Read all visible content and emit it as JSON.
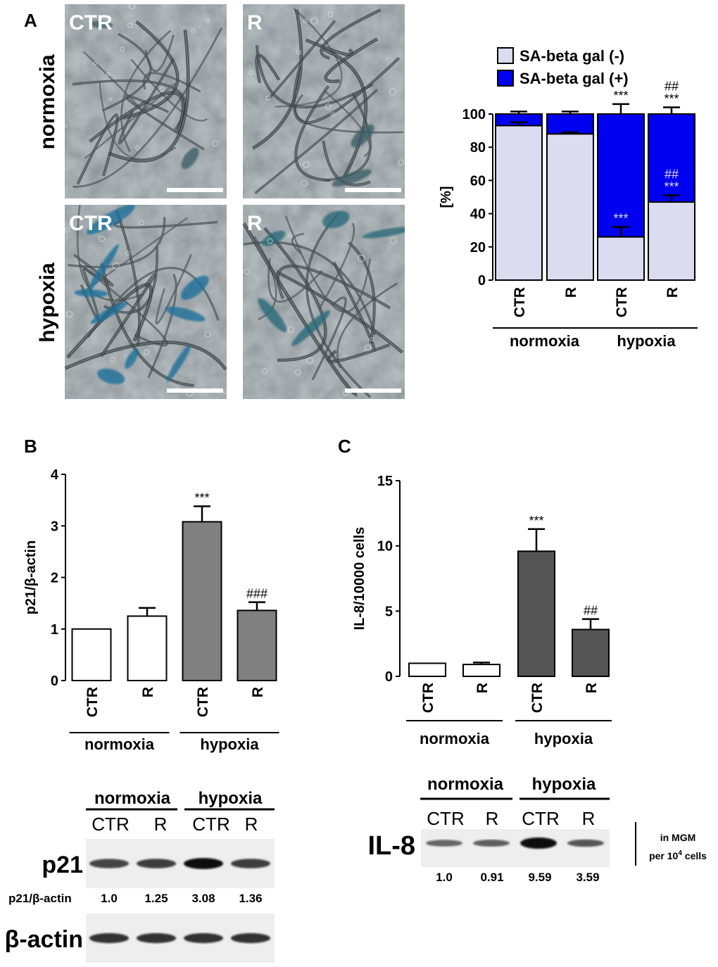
{
  "panels": {
    "a": "A",
    "b": "B",
    "c": "C"
  },
  "micrographs": {
    "row_labels": [
      "normoxia",
      "hypoxia"
    ],
    "images": [
      {
        "label": "CTR",
        "stain": "low"
      },
      {
        "label": "R",
        "stain": "low"
      },
      {
        "label": "CTR",
        "stain": "high"
      },
      {
        "label": "R",
        "stain": "medium"
      }
    ]
  },
  "chart_data": [
    {
      "type": "bar",
      "stacked": true,
      "panel": "A",
      "categories": [
        "CTR",
        "R",
        "CTR",
        "R"
      ],
      "groups": [
        {
          "name": "normoxia",
          "span": [
            0,
            1
          ]
        },
        {
          "name": "hypoxia",
          "span": [
            2,
            3
          ]
        }
      ],
      "series": [
        {
          "name": "SA-beta gal (-)",
          "values": [
            93,
            88,
            26,
            47
          ],
          "errors": [
            2,
            1,
            6,
            4
          ],
          "color": "#dcdcf0"
        },
        {
          "name": "SA-beta gal (+)",
          "values": [
            7,
            12,
            74,
            53
          ],
          "errors": [
            1.5,
            1.5,
            6,
            4
          ],
          "color": "#0000f0"
        }
      ],
      "annotations": {
        "bottom": [
          "",
          "",
          "***",
          "##\n***"
        ],
        "top": [
          "",
          "",
          "***",
          "##\n***"
        ]
      },
      "ylabel": "[%]",
      "ylim": [
        0,
        100
      ],
      "yticks": [
        0,
        20,
        40,
        60,
        80,
        100
      ],
      "legend_position": "top"
    },
    {
      "type": "bar",
      "panel": "B",
      "categories": [
        "CTR",
        "R",
        "CTR",
        "R"
      ],
      "groups": [
        {
          "name": "normoxia",
          "span": [
            0,
            1
          ]
        },
        {
          "name": "hypoxia",
          "span": [
            2,
            3
          ]
        }
      ],
      "values": [
        1.0,
        1.25,
        3.08,
        1.36
      ],
      "errors": [
        0,
        0.16,
        0.3,
        0.16
      ],
      "colors": [
        "#ffffff",
        "#ffffff",
        "#808080",
        "#808080"
      ],
      "annotations": [
        "",
        "",
        "***",
        "###"
      ],
      "ylabel": "p21/β-actin",
      "ylim": [
        0,
        4
      ],
      "yticks": [
        0,
        1,
        2,
        3,
        4
      ]
    },
    {
      "type": "bar",
      "panel": "C",
      "categories": [
        "CTR",
        "R",
        "CTR",
        "R"
      ],
      "groups": [
        {
          "name": "normoxia",
          "span": [
            0,
            1
          ]
        },
        {
          "name": "hypoxia",
          "span": [
            2,
            3
          ]
        }
      ],
      "values": [
        1.0,
        0.91,
        9.59,
        3.59
      ],
      "errors": [
        0,
        0.15,
        1.7,
        0.8
      ],
      "colors": [
        "#ffffff",
        "#ffffff",
        "#555555",
        "#555555"
      ],
      "annotations": [
        "",
        "",
        "***",
        "##"
      ],
      "ylabel": "IL-8/10000 cells",
      "ylim": [
        0,
        15
      ],
      "yticks": [
        0,
        5,
        10,
        15
      ]
    }
  ],
  "blot_b": {
    "groups": [
      "normoxia",
      "hypoxia"
    ],
    "lanes": [
      "CTR",
      "R",
      "CTR",
      "R"
    ],
    "rows": [
      {
        "name": "p21",
        "intensity": [
          0.55,
          0.6,
          0.95,
          0.6
        ]
      },
      {
        "name": "β-actin",
        "intensity": [
          0.7,
          0.7,
          0.7,
          0.7
        ]
      }
    ],
    "quant_label": "p21/β-actin",
    "quant_values": [
      "1.0",
      "1.25",
      "3.08",
      "1.36"
    ]
  },
  "blot_c": {
    "groups": [
      "normoxia",
      "hypoxia"
    ],
    "lanes": [
      "CTR",
      "R",
      "CTR",
      "R"
    ],
    "name": "IL-8",
    "intensity": [
      0.35,
      0.4,
      1.0,
      0.45
    ],
    "quant_values": [
      "1.0",
      "0.91",
      "9.59",
      "3.59"
    ],
    "note_line1": "in MGM",
    "note_line2_prefix": "per 10",
    "note_line2_sup": "4",
    "note_line2_suffix": " cells"
  }
}
